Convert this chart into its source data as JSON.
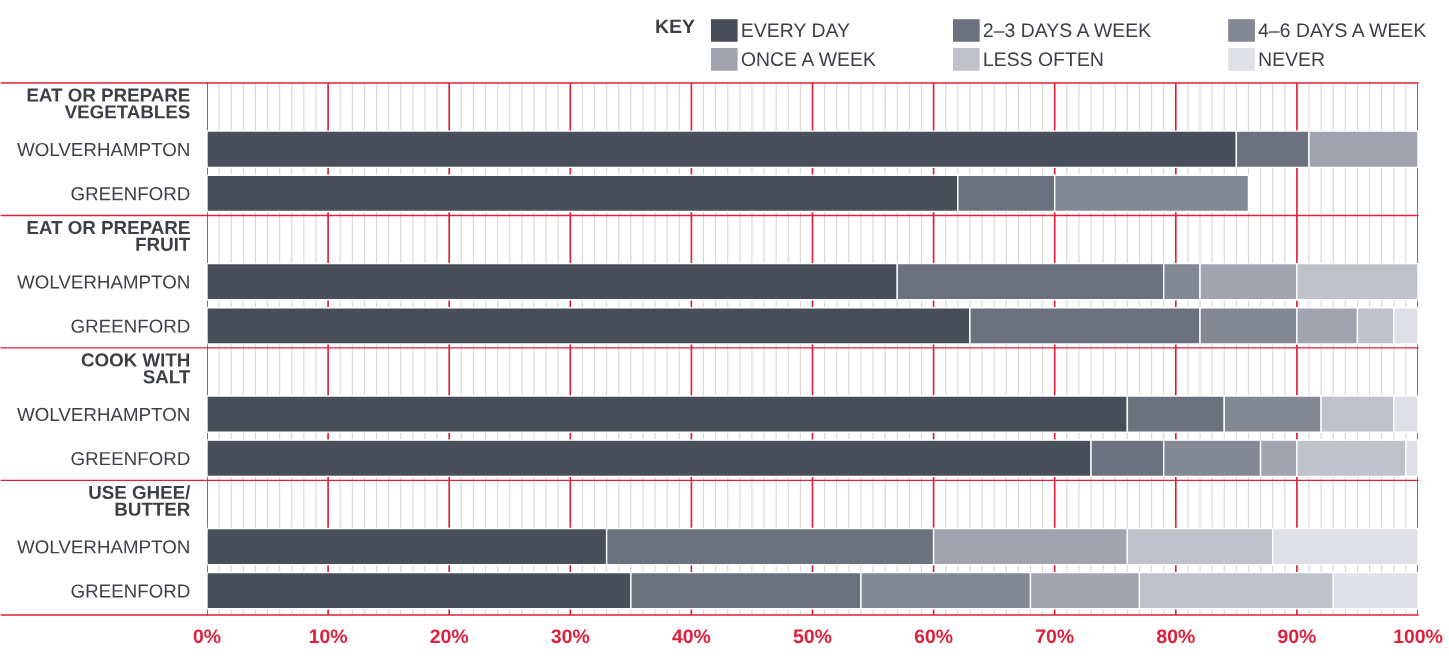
{
  "chart_data": {
    "type": "bar",
    "orientation": "horizontal",
    "stacked": true,
    "categories": [
      "EAT OR PREPARE\nVEGETABLES",
      "WOLVERHAMPTON",
      "GREENFORD",
      "EAT OR PREPARE\nFRUIT",
      "WOLVERHAMPTON",
      "GREENFORD",
      "COOK WITH\nSALT",
      "WOLVERHAMPTON",
      "GREENFORD",
      "USE GHEE/\nBUTTER",
      "WOLVERHAMPTON",
      "GREENFORD"
    ],
    "legend_title": "KEY",
    "legend": "top right",
    "grid": "x",
    "xlim": [
      0,
      100
    ],
    "xticks": [
      {
        "value": 0,
        "label": "0%"
      },
      {
        "value": 10,
        "label": "10%"
      },
      {
        "value": 20,
        "label": "20%"
      },
      {
        "value": 30,
        "label": "30%"
      },
      {
        "value": 40,
        "label": "40%"
      },
      {
        "value": 50,
        "label": "50%"
      },
      {
        "value": 60,
        "label": "60%"
      },
      {
        "value": 70,
        "label": "70%"
      },
      {
        "value": 80,
        "label": "80%"
      },
      {
        "value": 90,
        "label": "90%"
      },
      {
        "value": 100,
        "label": "100%"
      }
    ],
    "series": [
      {
        "name": "EVERY DAY",
        "color": "#484e5a",
        "values": [
          null,
          85,
          62,
          null,
          57,
          63,
          null,
          76,
          73,
          null,
          33,
          35
        ]
      },
      {
        "name": "2–3 DAYS A WEEK",
        "color": "#6b717e",
        "values": [
          null,
          6,
          8,
          null,
          22,
          19,
          null,
          8,
          6,
          null,
          27,
          19
        ]
      },
      {
        "name": "4–6 DAYS A WEEK",
        "color": "#838894",
        "values": [
          null,
          null,
          16,
          null,
          3,
          8,
          null,
          8,
          8,
          null,
          null,
          14
        ]
      },
      {
        "name": "ONCE A WEEK",
        "color": "#a1a4af",
        "values": [
          null,
          9,
          null,
          null,
          8,
          5,
          null,
          null,
          3,
          null,
          16,
          9
        ]
      },
      {
        "name": "LESS OFTEN",
        "color": "#bfc2cb",
        "values": [
          null,
          null,
          null,
          null,
          10,
          3,
          null,
          6,
          9,
          null,
          12,
          16
        ]
      },
      {
        "name": "NEVER",
        "color": "#dfe0e5",
        "values": [
          null,
          null,
          null,
          null,
          null,
          2,
          null,
          2,
          1,
          null,
          12,
          7
        ]
      }
    ]
  }
}
